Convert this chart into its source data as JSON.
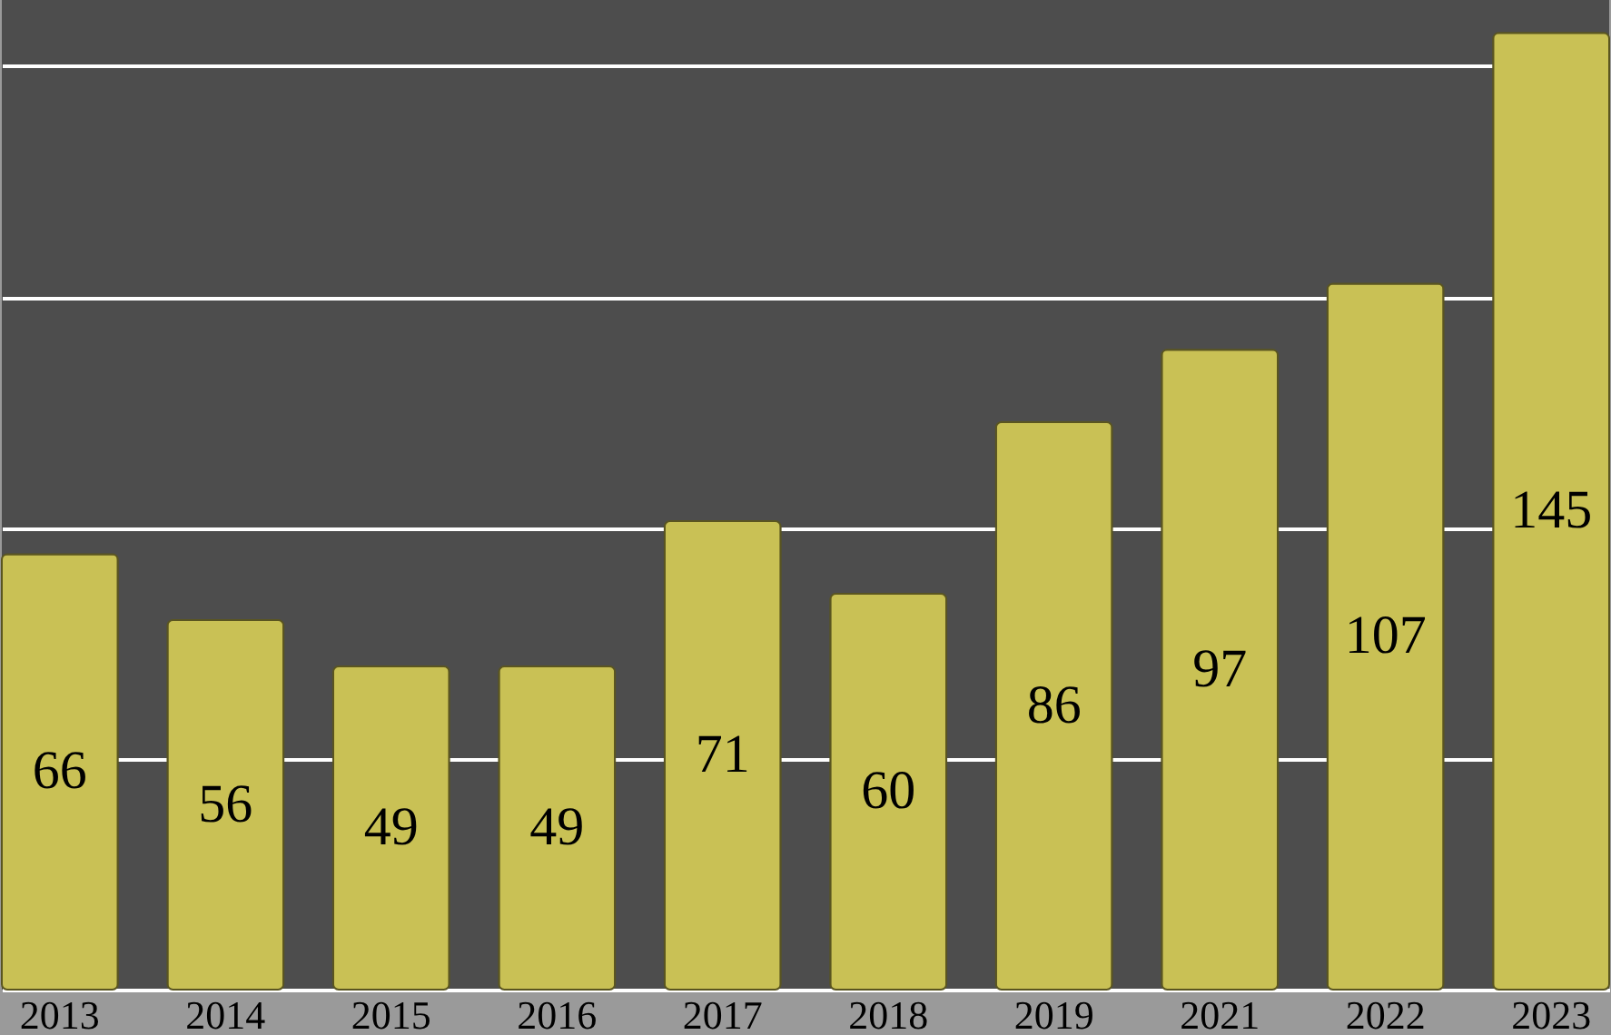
{
  "chart_data": {
    "type": "bar",
    "categories": [
      "2013",
      "2014",
      "2015",
      "2016",
      "2017",
      "2018",
      "2019",
      "2021",
      "2022",
      "2023"
    ],
    "values": [
      66,
      56,
      49,
      49,
      71,
      60,
      86,
      97,
      107,
      145
    ],
    "color": "#c9c155",
    "data_labels": true,
    "grid": "y",
    "tick_labels": "x",
    "ylim": [
      0,
      150
    ],
    "yticks": [
      {
        "value": 0,
        "label": null
      },
      {
        "value": 35,
        "label": null
      },
      {
        "value": 70,
        "label": null
      },
      {
        "value": 105,
        "label": null
      },
      {
        "value": 140,
        "label": null
      }
    ]
  }
}
